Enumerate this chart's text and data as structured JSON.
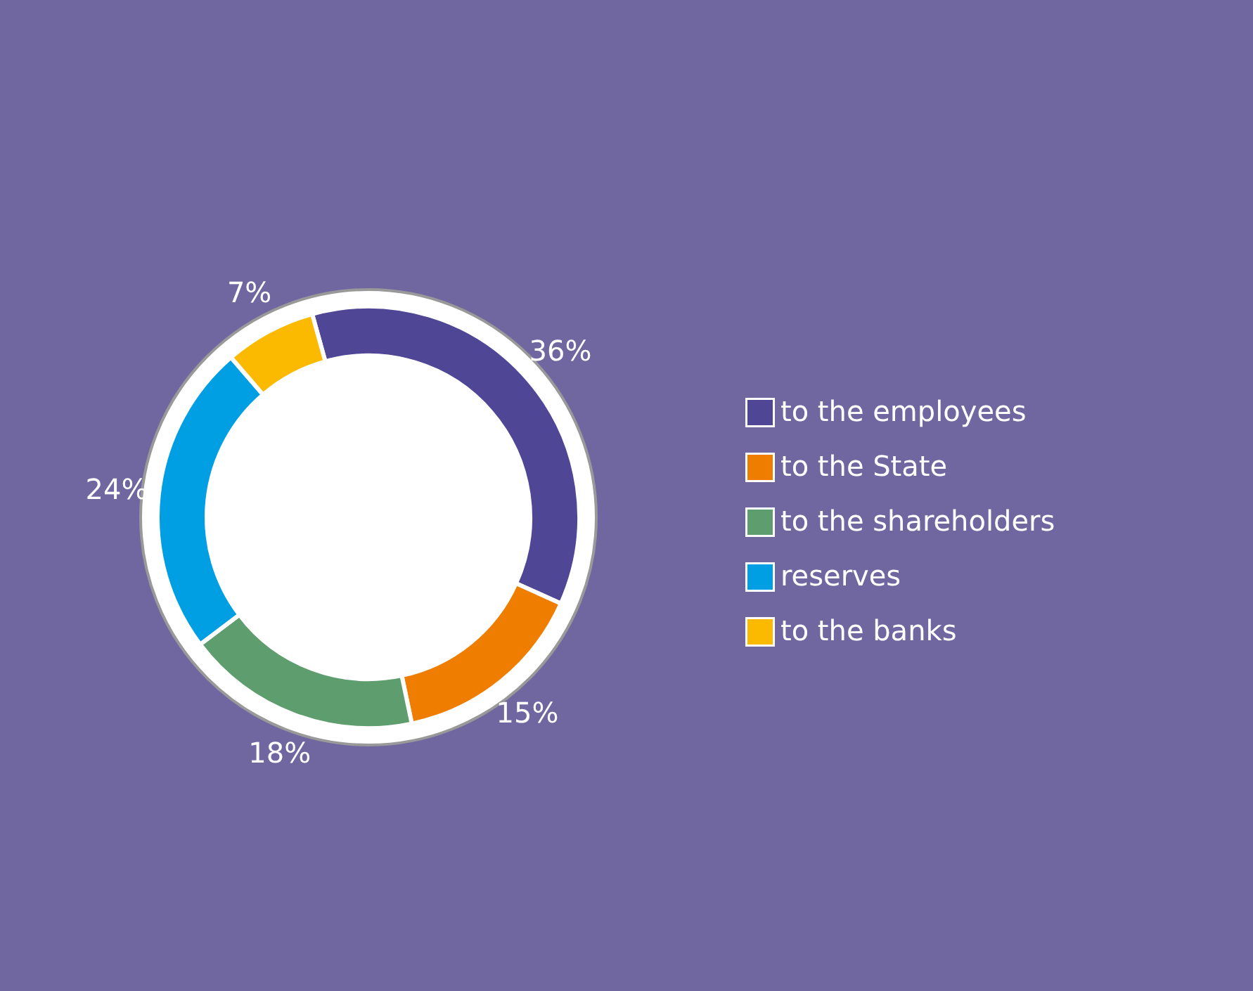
{
  "chart_data": {
    "type": "donut",
    "categories": [
      "to the employees",
      "to the State",
      "to the shareholders",
      "reserves",
      "to the banks"
    ],
    "values": [
      36,
      15,
      18,
      24,
      7
    ],
    "value_labels": [
      "36%",
      "15%",
      "18%",
      "24%",
      "7%"
    ],
    "colors": [
      "#4f4696",
      "#ef7d00",
      "#5e9e6e",
      "#009fe3",
      "#fbba00"
    ],
    "legend": "right"
  }
}
